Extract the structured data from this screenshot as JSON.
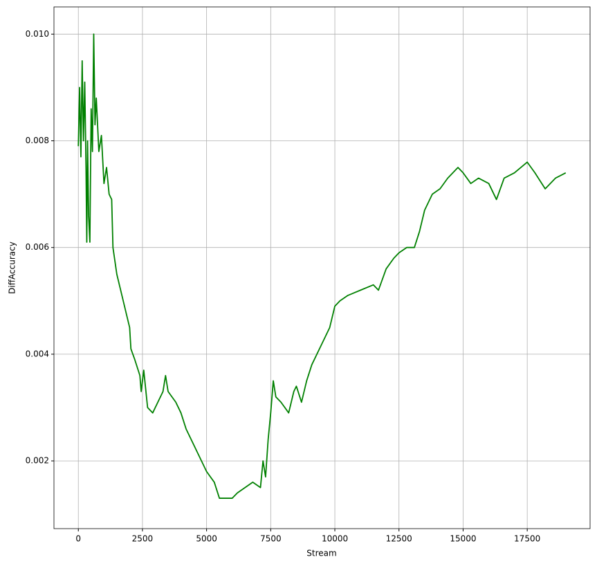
{
  "chart_data": {
    "type": "line",
    "xlabel": "Stream",
    "ylabel": "DiffAccuracy",
    "x": [
      0,
      50,
      100,
      150,
      200,
      250,
      300,
      330,
      360,
      400,
      450,
      500,
      550,
      600,
      650,
      700,
      800,
      900,
      1000,
      1100,
      1200,
      1300,
      1350,
      1500,
      1700,
      1900,
      2000,
      2050,
      2200,
      2400,
      2450,
      2550,
      2700,
      2900,
      3100,
      3300,
      3400,
      3500,
      3800,
      4000,
      4200,
      4400,
      4700,
      5000,
      5300,
      5500,
      5800,
      6000,
      6200,
      6500,
      6800,
      7100,
      7200,
      7300,
      7400,
      7500,
      7600,
      7700,
      7900,
      8200,
      8400,
      8500,
      8700,
      8900,
      9100,
      9300,
      9500,
      9800,
      10000,
      10200,
      10500,
      11000,
      11500,
      11700,
      12000,
      12300,
      12500,
      12800,
      13100,
      13300,
      13500,
      13800,
      14100,
      14400,
      14800,
      15000,
      15300,
      15600,
      16000,
      16300,
      16600,
      17000,
      17500,
      17800,
      18200,
      18600,
      19000
    ],
    "values": [
      0.0079,
      0.009,
      0.0077,
      0.0095,
      0.008,
      0.0091,
      0.0075,
      0.0061,
      0.008,
      0.0066,
      0.0061,
      0.0086,
      0.0078,
      0.01,
      0.0083,
      0.0088,
      0.0078,
      0.0081,
      0.0072,
      0.0075,
      0.007,
      0.0069,
      0.006,
      0.0055,
      0.0051,
      0.0047,
      0.0045,
      0.0041,
      0.0039,
      0.0036,
      0.0033,
      0.0037,
      0.003,
      0.0029,
      0.0031,
      0.0033,
      0.0036,
      0.0033,
      0.0031,
      0.0029,
      0.0026,
      0.0024,
      0.0021,
      0.0018,
      0.0016,
      0.0013,
      0.0013,
      0.0013,
      0.0014,
      0.0015,
      0.0016,
      0.0015,
      0.002,
      0.0017,
      0.0024,
      0.0029,
      0.0035,
      0.0032,
      0.0031,
      0.0029,
      0.0033,
      0.0034,
      0.0031,
      0.0035,
      0.0038,
      0.004,
      0.0042,
      0.0045,
      0.0049,
      0.005,
      0.0051,
      0.0052,
      0.0053,
      0.0052,
      0.0056,
      0.0058,
      0.0059,
      0.006,
      0.006,
      0.0063,
      0.0067,
      0.007,
      0.0071,
      0.0073,
      0.0075,
      0.0074,
      0.0072,
      0.0073,
      0.0072,
      0.0069,
      0.0073,
      0.0074,
      0.0076,
      0.0074,
      0.0071,
      0.0073,
      0.0074
    ],
    "color": "#008000",
    "xlim": [
      -950,
      19950
    ],
    "xticks": [
      0,
      2500,
      5000,
      7500,
      10000,
      12500,
      15000,
      17500
    ],
    "ylim": [
      0.00073,
      0.01051
    ],
    "yticks": [
      0.002,
      0.004,
      0.006,
      0.008,
      {
        "value": 0.01,
        "label": "0.010"
      }
    ],
    "grid": true
  }
}
